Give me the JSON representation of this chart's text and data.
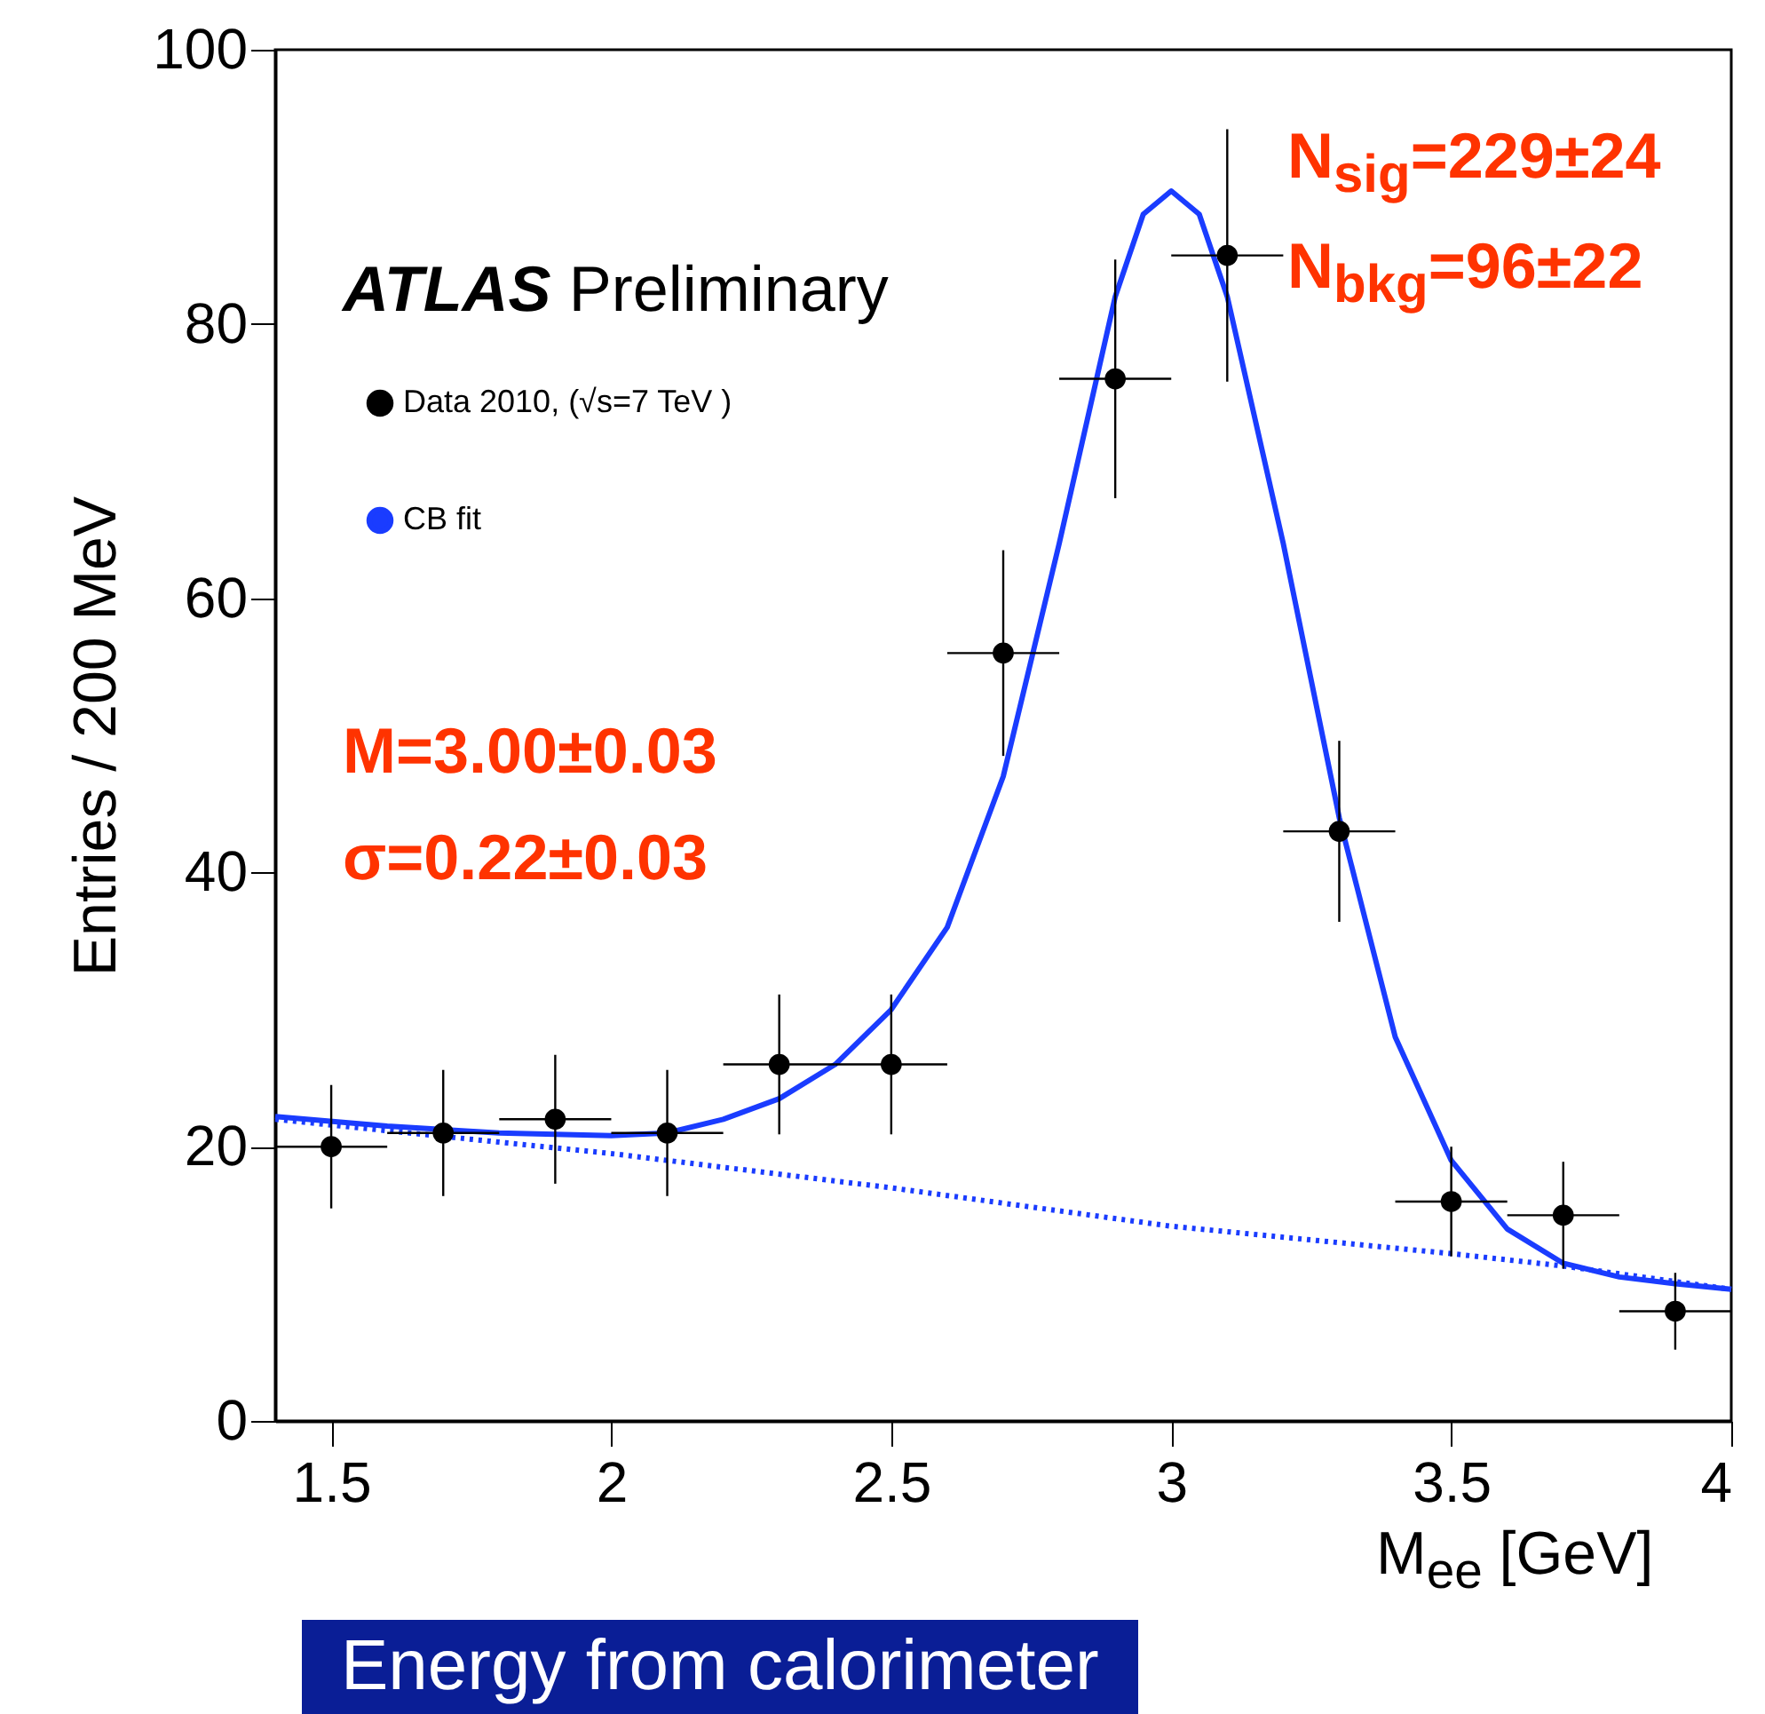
{
  "chart_data": {
    "type": "scatter",
    "xlabel": "M$_{ee}$ [GeV]",
    "ylabel": "Entries / 200 MeV",
    "xlim": [
      1.4,
      4
    ],
    "xticks": [
      1.5,
      2,
      2.5,
      3,
      3.5,
      4
    ],
    "ylim": [
      0,
      100
    ],
    "yticks": [
      0,
      20,
      40,
      60,
      80,
      100
    ],
    "grid": false,
    "legend": "top left",
    "annotations": [
      "ATLAS Preliminary",
      "N$_{sig}$=229±24",
      "N$_{bkg}$=96±22",
      "M=3.00±0.03",
      "σ=0.22±0.03",
      "Energy from calorimeter"
    ],
    "series": [
      {
        "name": "Data 2010, (√s=7 TeV )",
        "marker": "circle",
        "color": "#000000",
        "x": [
          1.5,
          1.7,
          1.9,
          2.1,
          2.3,
          2.5,
          2.7,
          2.9,
          3.1,
          3.3,
          3.5,
          3.7,
          3.9
        ],
        "values": [
          20,
          21,
          22,
          21,
          26,
          26,
          56,
          76,
          85,
          43,
          16,
          15,
          8
        ],
        "errors": [
          4.5,
          4.6,
          4.7,
          4.6,
          5.1,
          5.1,
          7.5,
          8.7,
          9.2,
          6.6,
          4,
          3.9,
          2.8
        ],
        "xerrors": [
          0.1,
          0.1,
          0.1,
          0.1,
          0.1,
          0.1,
          0.1,
          0.1,
          0.1,
          0.1,
          0.1,
          0.1,
          0.1
        ]
      },
      {
        "name": "CB fit",
        "type": "line",
        "color": "#1a3cff",
        "line_style": "solid",
        "x": [
          1.4,
          1.6,
          1.8,
          2.0,
          2.1,
          2.2,
          2.3,
          2.4,
          2.5,
          2.6,
          2.7,
          2.8,
          2.9,
          2.95,
          3.0,
          3.05,
          3.1,
          3.2,
          3.3,
          3.4,
          3.5,
          3.6,
          3.7,
          3.8,
          3.9,
          4.0
        ],
        "values": [
          22.2,
          21.5,
          21,
          20.8,
          21,
          22,
          23.5,
          26,
          30,
          36,
          47,
          64,
          82,
          88,
          89.7,
          88,
          82,
          64,
          44,
          28,
          19,
          14,
          11.5,
          10.5,
          10,
          9.6
        ]
      },
      {
        "type": "line",
        "color": "#1a3cff",
        "line_style": "dotted",
        "x": [
          1.4,
          2,
          2.5,
          3,
          3.5,
          3.7,
          4
        ],
        "values": [
          22,
          19.5,
          17,
          14.2,
          12.2,
          11.3,
          9.6
        ]
      }
    ]
  }
}
